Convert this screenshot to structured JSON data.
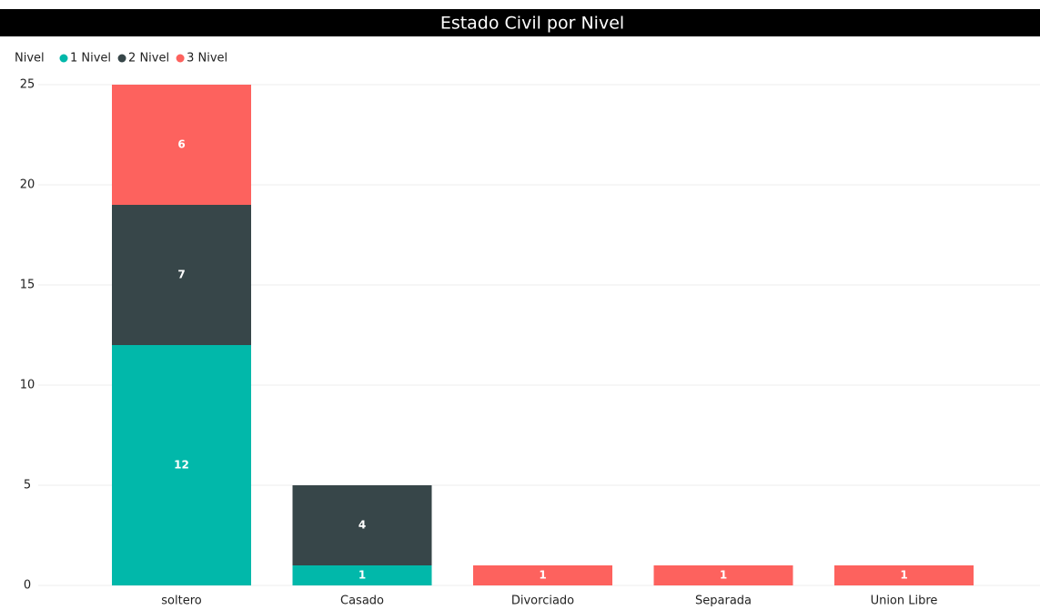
{
  "chart_data": {
    "type": "stacked_bar",
    "title": "Estado Civil por Nivel",
    "legend_title": "Nivel",
    "categories": [
      "soltero",
      "Casado",
      "Divorciado",
      "Separada",
      "Union Libre"
    ],
    "series": [
      {
        "name": "1 Nivel",
        "color": "#01b8aa",
        "values": [
          12,
          1,
          null,
          null,
          null
        ]
      },
      {
        "name": "2 Nivel",
        "color": "#374649",
        "values": [
          7,
          4,
          null,
          null,
          null
        ]
      },
      {
        "name": "3 Nivel",
        "color": "#fd625e",
        "values": [
          6,
          null,
          1,
          1,
          1
        ]
      }
    ],
    "ylim": [
      0,
      25
    ],
    "yticks": [
      0,
      5,
      10,
      15,
      20,
      25
    ],
    "grid": true,
    "legend": "top-left"
  }
}
